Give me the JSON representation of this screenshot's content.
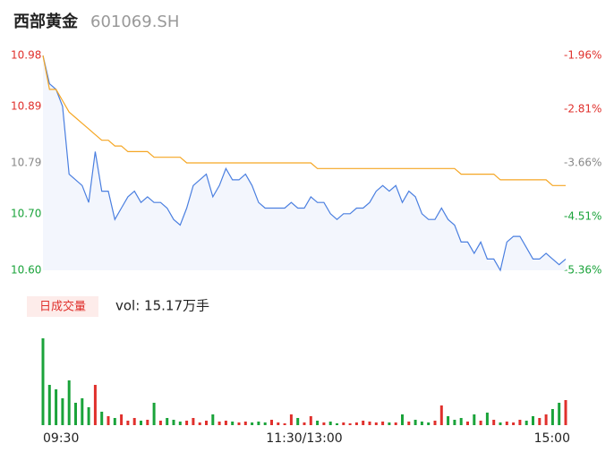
{
  "header": {
    "name": "西部黄金",
    "code": "601069.SH"
  },
  "chart_data": {
    "type": "line",
    "x": [
      0,
      3,
      6,
      9,
      12,
      15,
      18,
      21,
      24,
      27,
      30,
      33,
      36,
      39,
      42,
      45,
      48,
      51,
      54,
      57,
      60,
      63,
      66,
      69,
      72,
      75,
      78,
      81,
      84,
      87,
      90,
      93,
      96,
      99,
      102,
      105,
      108,
      111,
      114,
      117,
      120,
      123,
      126,
      129,
      132,
      135,
      138,
      141,
      144,
      147,
      150,
      153,
      156,
      159,
      162,
      165,
      168,
      171,
      174,
      177,
      180,
      183,
      186,
      189,
      192,
      195,
      198,
      201,
      204,
      207,
      210,
      213,
      216,
      219,
      222,
      225,
      228,
      231,
      234,
      237,
      240
    ],
    "xlim": [
      0,
      240
    ],
    "xticks": [
      {
        "value": 0,
        "label": "09:30"
      },
      {
        "value": 120,
        "label": "11:30/13:00"
      },
      {
        "value": 240,
        "label": "15:00"
      }
    ],
    "ylim": [
      10.6,
      10.98
    ],
    "yticks": [
      {
        "value": 10.98,
        "label": "10.98",
        "color": "#e0302c"
      },
      {
        "value": 10.89,
        "label": "10.89",
        "color": "#e0302c"
      },
      {
        "value": 10.79,
        "label": "10.79",
        "color": "#888888"
      },
      {
        "value": 10.7,
        "label": "10.70",
        "color": "#1aa33a"
      },
      {
        "value": 10.6,
        "label": "10.60",
        "color": "#1aa33a"
      }
    ],
    "y2lim": [
      -5.36,
      -1.96
    ],
    "y2ticks": [
      {
        "value": -1.96,
        "label": "-1.96%",
        "color": "#e0302c"
      },
      {
        "value": -2.81,
        "label": "-2.81%",
        "color": "#e0302c"
      },
      {
        "value": -3.66,
        "label": "-3.66%",
        "color": "#888888"
      },
      {
        "value": -4.51,
        "label": "-4.51%",
        "color": "#1aa33a"
      },
      {
        "value": -5.36,
        "label": "-5.36%",
        "color": "#1aa33a"
      }
    ],
    "series": [
      {
        "color": "#4a7fe0",
        "area_color": "#f3f6fd",
        "values": [
          10.98,
          10.93,
          10.92,
          10.89,
          10.77,
          10.76,
          10.75,
          10.72,
          10.81,
          10.74,
          10.74,
          10.69,
          10.71,
          10.73,
          10.74,
          10.72,
          10.73,
          10.72,
          10.72,
          10.71,
          10.69,
          10.68,
          10.71,
          10.75,
          10.76,
          10.77,
          10.73,
          10.75,
          10.78,
          10.76,
          10.76,
          10.77,
          10.75,
          10.72,
          10.71,
          10.71,
          10.71,
          10.71,
          10.72,
          10.71,
          10.71,
          10.73,
          10.72,
          10.72,
          10.7,
          10.69,
          10.7,
          10.7,
          10.71,
          10.71,
          10.72,
          10.74,
          10.75,
          10.74,
          10.75,
          10.72,
          10.74,
          10.73,
          10.7,
          10.69,
          10.69,
          10.71,
          10.69,
          10.68,
          10.65,
          10.65,
          10.63,
          10.65,
          10.62,
          10.62,
          10.6,
          10.65,
          10.66,
          10.66,
          10.64,
          10.62,
          10.62,
          10.63,
          10.62,
          10.61,
          10.62
        ]
      },
      {
        "color": "#f5a623",
        "values": [
          10.98,
          10.92,
          10.92,
          10.9,
          10.88,
          10.87,
          10.86,
          10.85,
          10.84,
          10.83,
          10.83,
          10.82,
          10.82,
          10.81,
          10.81,
          10.81,
          10.81,
          10.8,
          10.8,
          10.8,
          10.8,
          10.8,
          10.79,
          10.79,
          10.79,
          10.79,
          10.79,
          10.79,
          10.79,
          10.79,
          10.79,
          10.79,
          10.79,
          10.79,
          10.79,
          10.79,
          10.79,
          10.79,
          10.79,
          10.79,
          10.79,
          10.79,
          10.78,
          10.78,
          10.78,
          10.78,
          10.78,
          10.78,
          10.78,
          10.78,
          10.78,
          10.78,
          10.78,
          10.78,
          10.78,
          10.78,
          10.78,
          10.78,
          10.78,
          10.78,
          10.78,
          10.78,
          10.78,
          10.78,
          10.77,
          10.77,
          10.77,
          10.77,
          10.77,
          10.77,
          10.76,
          10.76,
          10.76,
          10.76,
          10.76,
          10.76,
          10.76,
          10.76,
          10.75,
          10.75,
          10.75
        ]
      }
    ],
    "volume": {
      "button": "日成交量",
      "label": "vol: 15.17万手",
      "up_color": "#e0302c",
      "down_color": "#1aa33a",
      "values": [
        97,
        45,
        40,
        30,
        50,
        25,
        30,
        20,
        45,
        15,
        10,
        8,
        12,
        5,
        8,
        5,
        6,
        25,
        5,
        8,
        6,
        4,
        5,
        8,
        3,
        5,
        12,
        4,
        5,
        4,
        3,
        4,
        3,
        4,
        3,
        6,
        3,
        2,
        12,
        8,
        3,
        10,
        5,
        3,
        4,
        2,
        3,
        2,
        3,
        5,
        4,
        3,
        4,
        3,
        3,
        12,
        4,
        6,
        4,
        3,
        5,
        22,
        10,
        6,
        8,
        4,
        12,
        5,
        14,
        6,
        3,
        4,
        3,
        6,
        5,
        10,
        8,
        12,
        18,
        25,
        28
      ]
    }
  }
}
